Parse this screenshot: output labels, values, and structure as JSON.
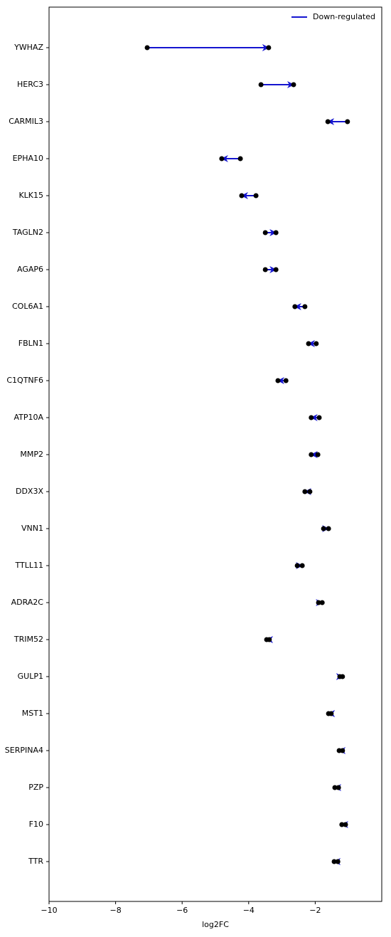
{
  "chart_data": {
    "type": "dumbbell",
    "xlabel": "log2FC",
    "categories": [
      "YWHAZ",
      "HERC3",
      "CARMIL3",
      "EPHA10",
      "KLK15",
      "TAGLN2",
      "AGAP6",
      "COL6A1",
      "FBLN1",
      "C1QTNF6",
      "ATP10A",
      "MMP2",
      "DDX3X",
      "VNN1",
      "TTLL11",
      "ADRA2C",
      "TRIM52",
      "GULP1",
      "MST1",
      "SERPINA4",
      "PZP",
      "F10",
      "TTR"
    ],
    "series": [
      {
        "name": "Down-regulated",
        "color": "#1515d0",
        "start": [
          -7.05,
          -3.63,
          -1.03,
          -4.25,
          -3.78,
          -3.5,
          -3.5,
          -2.31,
          -1.97,
          -2.88,
          -1.88,
          -1.92,
          -2.16,
          -1.75,
          -2.54,
          -1.9,
          -3.38,
          -1.26,
          -1.52,
          -1.18,
          -1.3,
          -1.09,
          -1.32
        ],
        "end": [
          -3.4,
          -2.65,
          -1.62,
          -4.81,
          -4.21,
          -3.18,
          -3.18,
          -2.61,
          -2.2,
          -3.12,
          -2.12,
          -2.12,
          -2.31,
          -1.6,
          -2.39,
          -1.79,
          -3.46,
          -1.18,
          -1.6,
          -1.28,
          -1.41,
          -1.2,
          -1.43
        ]
      }
    ],
    "point_color": "#000000",
    "xlim": [
      -10,
      0
    ],
    "xticks": [
      {
        "value": -10,
        "label": "−10"
      },
      {
        "value": -8,
        "label": "−8"
      },
      {
        "value": -6,
        "label": "−6"
      },
      {
        "value": -4,
        "label": "−4"
      },
      {
        "value": -2,
        "label": "−2"
      }
    ],
    "legend": "upper right"
  }
}
